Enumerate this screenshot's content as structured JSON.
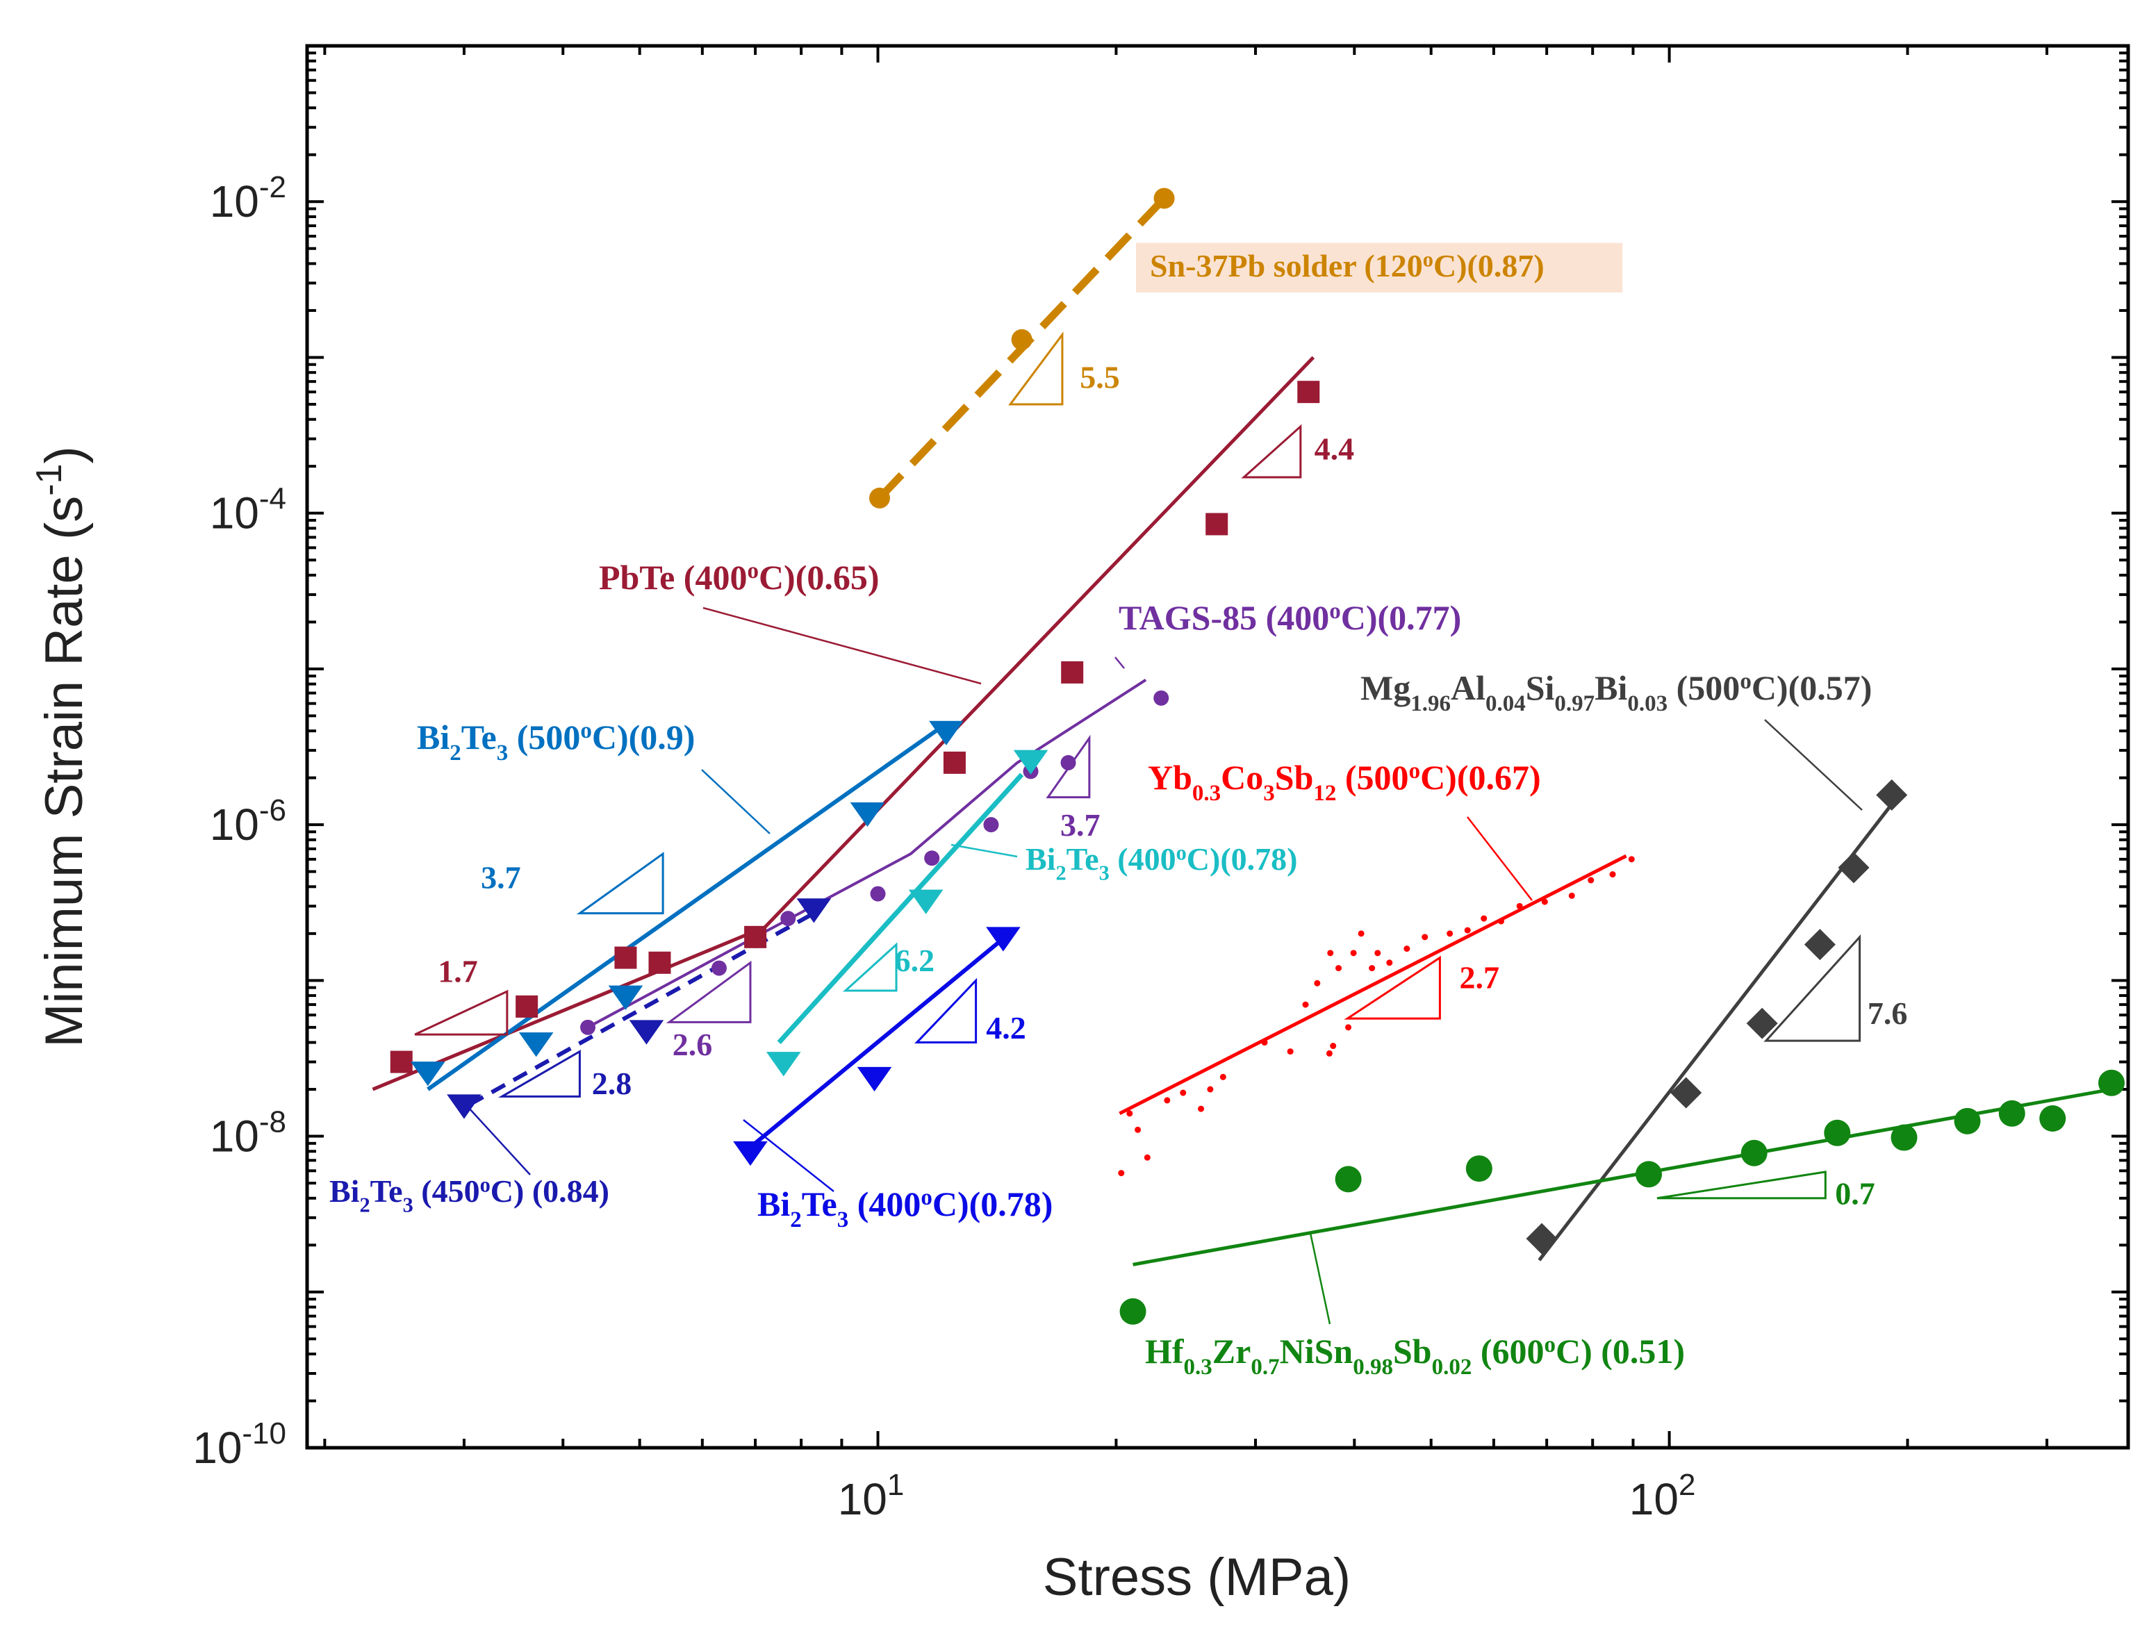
{
  "chart_data": {
    "type": "scatter",
    "x_scale": "log",
    "y_scale": "log",
    "xlim": [
      1.9,
      380
    ],
    "ylim": [
      1e-10,
      0.1
    ],
    "xlabel": "Stress (MPa)",
    "ylabel_main": "Minimum Strain Rate (s",
    "ylabel_sup": "-1",
    "ylabel_end": ")",
    "x_ticks": [
      {
        "value": 10,
        "base": "10",
        "exp": "1"
      },
      {
        "value": 100,
        "base": "10",
        "exp": "2"
      }
    ],
    "y_ticks": [
      {
        "value": 0.01,
        "base": "10",
        "exp": "-2"
      },
      {
        "value": 0.0001,
        "base": "10",
        "exp": "-4"
      },
      {
        "value": 1e-06,
        "base": "10",
        "exp": "-6"
      },
      {
        "value": 1e-08,
        "base": "10",
        "exp": "-8"
      },
      {
        "value": 1e-10,
        "base": "10",
        "exp": "-10"
      }
    ],
    "series": [
      {
        "id": "sn37pb",
        "color": "#CC8400",
        "marker": "circle",
        "marker_size": 30,
        "line_style": "dashed",
        "line_width": 11,
        "label_parts": [
          {
            "t": "Sn-37Pb solder (120"
          },
          {
            "t": "o",
            "sup": true
          },
          {
            "t": "C)(0.87)"
          }
        ],
        "label_pos": {
          "x": 1655,
          "y": 398
        },
        "label_size": 46,
        "label_bg": "#FBE3D3",
        "points": [
          [
            10.05,
            0.000125
          ],
          [
            15.2,
            0.0013
          ],
          [
            23.0,
            0.0105
          ]
        ],
        "fit": [
          [
            10.05,
            0.000125
          ],
          [
            23.0,
            0.0105
          ]
        ],
        "slope": {
          "value": "5.5",
          "x0": 14.7,
          "x1": 17.1,
          "y_top": 0.0014,
          "y_bot": 0.0005,
          "label_x": 18.0,
          "label_y": 0.00075
        }
      },
      {
        "id": "pbte",
        "color": "#9B1B34",
        "marker": "square",
        "marker_size": 32,
        "line_style": "solid",
        "line_width": 5,
        "label_parts": [
          {
            "t": "PbTe (400"
          },
          {
            "t": "o",
            "sup": true
          },
          {
            "t": "C)(0.65)"
          }
        ],
        "label_pos": {
          "x": 862,
          "y": 848
        },
        "label_size": 50,
        "leader": [
          [
            1012,
            875
          ],
          [
            1412,
            984
          ]
        ],
        "points": [
          [
            2.5,
            3e-08
          ],
          [
            3.6,
            6.8e-08
          ],
          [
            4.8,
            1.4e-07
          ],
          [
            5.3,
            1.3e-07
          ],
          [
            7.0,
            1.9e-07
          ],
          [
            12.5,
            2.5e-06
          ],
          [
            17.6,
            9.5e-06
          ],
          [
            26.8,
            8.5e-05
          ],
          [
            35.0,
            0.0006
          ]
        ],
        "fit": [
          [
            2.3,
            2e-08
          ],
          [
            7.2,
            2.2e-07
          ],
          [
            35.5,
            0.001
          ]
        ],
        "slope": {
          "value": "4.4",
          "x0": 29.0,
          "x1": 34.2,
          "y_top": 0.00036,
          "y_bot": 0.00017,
          "label_x": 35.6,
          "label_y": 0.00026
        }
      },
      {
        "id": "tags85",
        "color": "#7030A0",
        "marker": "circle",
        "marker_size": 22,
        "line_style": "solid",
        "line_width": 4,
        "label_parts": [
          {
            "t": "TAGS-85 (400"
          },
          {
            "t": "o",
            "sup": true
          },
          {
            "t": "C)(0.77)"
          }
        ],
        "label_pos": {
          "x": 1610,
          "y": 906
        },
        "label_size": 50,
        "leader": [
          [
            1605,
            946
          ],
          [
            1618,
            962
          ]
        ],
        "points": [
          [
            4.3,
            5e-08
          ],
          [
            6.3,
            1.2e-07
          ],
          [
            7.7,
            2.5e-07
          ],
          [
            10.0,
            3.6e-07
          ],
          [
            11.7,
            6.1e-07
          ],
          [
            13.9,
            1e-06
          ],
          [
            15.6,
            2.2e-06
          ],
          [
            17.4,
            2.5e-06
          ],
          [
            22.8,
            6.5e-06
          ]
        ],
        "fit": [
          [
            4.3,
            5e-08
          ],
          [
            7.0,
            1.9e-07
          ],
          [
            11.0,
            6.5e-07
          ],
          [
            15.0,
            2.5e-06
          ],
          [
            21.8,
            8.5e-06
          ]
        ],
        "slope": {
          "value": "2.6",
          "x0": 5.45,
          "x1": 6.9,
          "y_top": 1.3e-07,
          "y_bot": 5.4e-08,
          "label_x": 5.5,
          "label_y": 3.9e-08,
          "label_at_left": true
        }
      },
      {
        "id": "bi2te3_500",
        "color": "#0070C0",
        "marker": "triangle-down",
        "marker_size": 40,
        "line_style": "solid",
        "line_width": 6,
        "label_parts": [
          {
            "t": "Bi"
          },
          {
            "t": "2",
            "sub": true
          },
          {
            "t": "Te"
          },
          {
            "t": "3",
            "sub": true
          },
          {
            "t": " (500"
          },
          {
            "t": "o",
            "sup": true
          },
          {
            "t": "C)(0.9)"
          }
        ],
        "label_pos": {
          "x": 600,
          "y": 1078
        },
        "label_size": 50,
        "leader": [
          [
            1010,
            1108
          ],
          [
            1108,
            1200
          ]
        ],
        "points": [
          [
            2.7,
            2.6e-08
          ],
          [
            3.7,
            4e-08
          ],
          [
            4.8,
            8e-08
          ],
          [
            9.7,
            1.2e-06
          ],
          [
            12.2,
            4e-06
          ]
        ],
        "fit": [
          [
            2.7,
            2e-08
          ],
          [
            12.0,
            4.2e-06
          ]
        ],
        "slope": {
          "value": "3.7",
          "x0": 4.2,
          "x1": 5.35,
          "y_top": 6.5e-07,
          "y_bot": 2.7e-07,
          "label_x": 3.15,
          "label_y": 4.6e-07
        }
      },
      {
        "id": "bi2te3_450",
        "color": "#1A1AAE",
        "marker": "triangle-down",
        "marker_size": 40,
        "line_style": "dashed",
        "line_width": 6,
        "label_parts": [
          {
            "t": "Bi"
          },
          {
            "t": "2",
            "sub": true
          },
          {
            "t": "Te"
          },
          {
            "t": "3",
            "sub": true
          },
          {
            "t": " (450"
          },
          {
            "t": "o",
            "sup": true
          },
          {
            "t": "C) (0.84)"
          }
        ],
        "label_pos": {
          "x": 474,
          "y": 1730
        },
        "label_size": 46,
        "leader": [
          [
            763,
            1691
          ],
          [
            663,
            1582
          ]
        ],
        "points": [
          [
            3.0,
            1.6e-08
          ],
          [
            5.1,
            4.8e-08
          ],
          [
            8.3,
            2.9e-07
          ]
        ],
        "fit": [
          [
            3.05,
            1.6e-08
          ],
          [
            8.3,
            2.7e-07
          ]
        ],
        "slope": {
          "value": "2.8",
          "x0": 3.35,
          "x1": 4.2,
          "y_top": 3.5e-08,
          "y_bot": 1.8e-08,
          "label_x": 4.35,
          "label_y": 2.2e-08
        }
      },
      {
        "id": "bi2te3_400_cyan",
        "color": "#1ABDC4",
        "marker": "triangle-down",
        "marker_size": 40,
        "line_style": "solid",
        "line_width": 7,
        "label_parts": [
          {
            "t": "Bi"
          },
          {
            "t": "2",
            "sub": true
          },
          {
            "t": "Te"
          },
          {
            "t": "3",
            "sub": true
          },
          {
            "t": " (400"
          },
          {
            "t": "o",
            "sup": true
          },
          {
            "t": "C)(0.78)"
          }
        ],
        "label_pos": {
          "x": 1476,
          "y": 1252
        },
        "label_size": 46,
        "leader": [
          [
            1369,
            1216
          ],
          [
            1464,
            1233
          ]
        ],
        "points": [
          [
            7.6,
            3e-08
          ],
          [
            11.5,
            3.3e-07
          ],
          [
            15.6,
            2.6e-06
          ]
        ],
        "fit": [
          [
            7.5,
            4e-08
          ],
          [
            15.2,
            2.1e-06
          ]
        ],
        "slope": {
          "value": "6.2",
          "x0": 9.1,
          "x1": 10.55,
          "y_top": 1.7e-07,
          "y_bot": 8.6e-08,
          "label_x": 10.5,
          "label_y": 1.35e-07,
          "label_at_top_right": true
        }
      },
      {
        "id": "bi2te3_400_blue",
        "color": "#0A0AE6",
        "marker": "triangle-down",
        "marker_size": 40,
        "line_style": "solid",
        "line_width": 6,
        "label_parts": [
          {
            "t": "Bi"
          },
          {
            "t": "2",
            "sub": true
          },
          {
            "t": "Te"
          },
          {
            "t": "3",
            "sub": true
          },
          {
            "t": " (400"
          },
          {
            "t": "o",
            "sup": true
          },
          {
            "t": "C)(0.78)"
          }
        ],
        "label_pos": {
          "x": 1090,
          "y": 1750
        },
        "label_size": 50,
        "leader": [
          [
            1070,
            1612
          ],
          [
            1200,
            1715
          ]
        ],
        "points": [
          [
            6.9,
            8e-09
          ],
          [
            9.9,
            2.4e-08
          ],
          [
            14.4,
            1.9e-07
          ]
        ],
        "fit": [
          [
            6.8,
            8e-09
          ],
          [
            14.2,
            1.75e-07
          ]
        ],
        "slope": {
          "value": "4.2",
          "x0": 11.2,
          "x1": 13.3,
          "y_top": 1e-07,
          "y_bot": 4e-08,
          "label_x": 13.7,
          "label_y": 5e-08
        }
      },
      {
        "id": "yb",
        "color": "#FF0000",
        "marker": "dot",
        "marker_size": 9,
        "line_style": "solid",
        "line_width": 5,
        "label_parts": [
          {
            "t": "Yb"
          },
          {
            "t": "0.3",
            "sub": true
          },
          {
            "t": "Co"
          },
          {
            "t": "3",
            "sub": true
          },
          {
            "t": "Sb"
          },
          {
            "t": "12",
            "sub": true
          },
          {
            "t": " (500"
          },
          {
            "t": "o",
            "sup": true
          },
          {
            "t": "C)(0.67)"
          }
        ],
        "label_pos": {
          "x": 1652,
          "y": 1136
        },
        "label_size": 50,
        "leader": [
          [
            2112,
            1176
          ],
          [
            2205,
            1296
          ]
        ],
        "points": [
          [
            20.3,
            5.8e-09
          ],
          [
            20.8,
            1.4e-08
          ],
          [
            21.3,
            1.1e-08
          ],
          [
            21.9,
            7.3e-09
          ],
          [
            23.2,
            1.7e-08
          ],
          [
            24.3,
            1.9e-08
          ],
          [
            25.6,
            1.5e-08
          ],
          [
            26.3,
            2e-08
          ],
          [
            27.3,
            2.4e-08
          ],
          [
            30.8,
            4e-08
          ],
          [
            33.2,
            3.5e-08
          ],
          [
            34.7,
            7e-08
          ],
          [
            35.9,
            9.6e-08
          ],
          [
            37.3,
            1.5e-07
          ],
          [
            38.2,
            1.2e-07
          ],
          [
            39.9,
            1.5e-07
          ],
          [
            40.8,
            2e-07
          ],
          [
            42.1,
            1.2e-07
          ],
          [
            42.8,
            1.5e-07
          ],
          [
            44.3,
            1.3e-07
          ],
          [
            46.6,
            1.6e-07
          ],
          [
            49.1,
            1.9e-07
          ],
          [
            52.8,
            2e-07
          ],
          [
            55.6,
            2.1e-07
          ],
          [
            58.3,
            2.5e-07
          ],
          [
            61.3,
            2.4e-07
          ],
          [
            64.7,
            3e-07
          ],
          [
            69.6,
            3.2e-07
          ],
          [
            75.3,
            3.5e-07
          ],
          [
            79.6,
            4.4e-07
          ],
          [
            84.8,
            4.8e-07
          ],
          [
            89.6,
            6e-07
          ],
          [
            37.2,
            3.4e-08
          ],
          [
            39.3,
            5e-08
          ],
          [
            37.6,
            3.8e-08
          ]
        ],
        "fit": [
          [
            20.2,
            1.4e-08
          ],
          [
            88.2,
            6.3e-07
          ]
        ],
        "slope": {
          "value": "2.7",
          "x0": 39.2,
          "x1": 51.3,
          "y_top": 1.4e-07,
          "y_bot": 5.7e-08,
          "label_x": 54.3,
          "label_y": 1.05e-07
        }
      },
      {
        "id": "mg",
        "color": "#3F3F3F",
        "marker": "diamond",
        "marker_size": 30,
        "line_style": "solid",
        "line_width": 5,
        "label_parts": [
          {
            "t": "Mg"
          },
          {
            "t": "1.96",
            "sub": true
          },
          {
            "t": "Al"
          },
          {
            "t": "0.04",
            "sub": true
          },
          {
            "t": "Si"
          },
          {
            "t": "0.97",
            "sub": true
          },
          {
            "t": "Bi"
          },
          {
            "t": "0.03",
            "sub": true
          },
          {
            "t": " (500"
          },
          {
            "t": "o",
            "sup": true
          },
          {
            "t": "C)(0.57)"
          }
        ],
        "label_pos": {
          "x": 1958,
          "y": 1007
        },
        "label_size": 50,
        "leader": [
          [
            2540,
            1036
          ],
          [
            2680,
            1166
          ]
        ],
        "points": [
          [
            69.0,
            2.2e-09
          ],
          [
            105.0,
            1.9e-08
          ],
          [
            131.0,
            5.3e-08
          ],
          [
            155.0,
            1.7e-07
          ],
          [
            171.0,
            5.3e-07
          ],
          [
            191.0,
            1.55e-06
          ]
        ],
        "fit": [
          [
            68.5,
            1.6e-09
          ],
          [
            192.0,
            1.4e-06
          ]
        ],
        "slope": {
          "value": "7.6",
          "x0": 132.5,
          "x1": 174.0,
          "y_top": 1.9e-07,
          "y_bot": 4.1e-08,
          "label_x": 178.0,
          "label_y": 6.2e-08
        }
      },
      {
        "id": "hf",
        "color": "#118511",
        "marker": "circle",
        "marker_size": 38,
        "line_style": "solid",
        "line_width": 5,
        "label_parts": [
          {
            "t": "Hf"
          },
          {
            "t": "0.3",
            "sub": true
          },
          {
            "t": "Zr"
          },
          {
            "t": "0.7",
            "sub": true
          },
          {
            "t": "NiSn"
          },
          {
            "t": "0.98",
            "sub": true
          },
          {
            "t": "Sb"
          },
          {
            "t": "0.02",
            "sub": true
          },
          {
            "t": " (600"
          },
          {
            "t": "o",
            "sup": true
          },
          {
            "t": "C) (0.51)"
          }
        ],
        "label_pos": {
          "x": 1648,
          "y": 1962
        },
        "label_size": 50,
        "leader": [
          [
            1886,
            1775
          ],
          [
            1914,
            1906
          ]
        ],
        "points": [
          [
            21.0,
            7.5e-10
          ],
          [
            39.3,
            5.3e-09
          ],
          [
            57.5,
            6.2e-09
          ],
          [
            94.2,
            5.7e-09
          ],
          [
            128.0,
            7.8e-09
          ],
          [
            163.0,
            1.05e-08
          ],
          [
            198.0,
            9.8e-09
          ],
          [
            238.0,
            1.25e-08
          ],
          [
            271.0,
            1.4e-08
          ],
          [
            305.0,
            1.3e-08
          ],
          [
            362.0,
            2.2e-08
          ]
        ],
        "fit": [
          [
            21.0,
            1.5e-09
          ],
          [
            362.0,
            2e-08
          ]
        ],
        "slope": {
          "value": "0.7",
          "x0": 96.5,
          "x1": 157.5,
          "y_top": 5.9e-09,
          "y_bot": 4e-09,
          "label_x": 162.0,
          "label_y": 4.3e-09
        }
      }
    ],
    "pbte_slope_17": {
      "value": "1.7",
      "x0": 2.6,
      "x1": 3.4,
      "y_top": 8.5e-08,
      "y_bot": 4.5e-08,
      "label_x": 2.78,
      "label_y": 1.15e-07,
      "color": "#9B1B34"
    },
    "tags_slope_37": {
      "value": "3.7",
      "x0": 16.4,
      "x1": 18.5,
      "y_top": 3.6e-06,
      "y_bot": 1.5e-06,
      "label_x": 17.0,
      "label_y": 1e-06,
      "color": "#7030A0"
    }
  }
}
